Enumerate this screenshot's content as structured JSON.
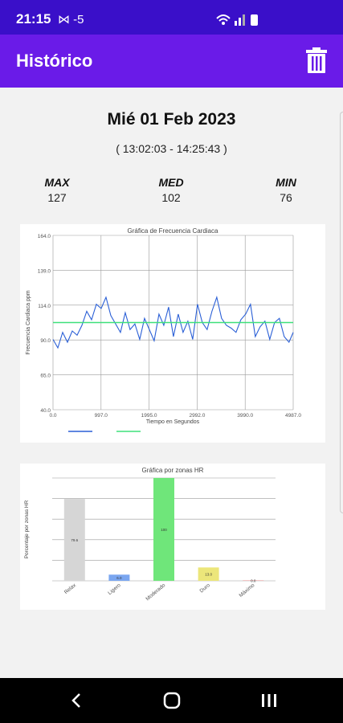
{
  "status_bar": {
    "time": "21:15",
    "indicators": "⋈ -5"
  },
  "app_bar": {
    "title": "Histórico",
    "delete_icon": "trash-icon"
  },
  "summary": {
    "date": "Mié 01 Feb 2023",
    "time_range": "( 13:02:03 - 14:25:43 )",
    "max_label": "MAX",
    "max_value": "127",
    "med_label": "MED",
    "med_value": "102",
    "min_label": "MIN",
    "min_value": "76"
  },
  "chart_data": [
    {
      "type": "line",
      "title": "Gráfica de Frecuencia Cardiaca",
      "xlabel": "Tiempo en Segundos",
      "ylabel": "Frecuencia Cardiaca ppm",
      "xlim": [
        0,
        4987
      ],
      "ylim": [
        40,
        164
      ],
      "x_ticks": [
        "0.0",
        "997.0",
        "1995.0",
        "2992.0",
        "3990.0",
        "4987.0"
      ],
      "y_ticks": [
        "164.0",
        "139.0",
        "114.0",
        "90.0",
        "65.0",
        "40.0"
      ],
      "grid": true,
      "series": [
        {
          "color": "#2a5fd6",
          "x": [
            0,
            100,
            200,
            300,
            400,
            500,
            600,
            700,
            800,
            900,
            1000,
            1100,
            1200,
            1300,
            1400,
            1500,
            1600,
            1700,
            1800,
            1900,
            2000,
            2100,
            2200,
            2300,
            2400,
            2500,
            2600,
            2700,
            2800,
            2900,
            3000,
            3100,
            3200,
            3300,
            3400,
            3500,
            3600,
            3700,
            3800,
            3900,
            4000,
            4100,
            4200,
            4300,
            4400,
            4500,
            4600,
            4700,
            4800,
            4900,
            4987
          ],
          "y": [
            90,
            84,
            95,
            88,
            96,
            93,
            100,
            110,
            104,
            115,
            112,
            120,
            107,
            101,
            95,
            109,
            97,
            101,
            90,
            105,
            97,
            89,
            108,
            100,
            113,
            92,
            108,
            95,
            103,
            90,
            115,
            102,
            97,
            110,
            120,
            105,
            100,
            98,
            95,
            104,
            108,
            115,
            92,
            99,
            103,
            90,
            102,
            105,
            92,
            88,
            95
          ]
        },
        {
          "color": "#3ee07a",
          "x": [
            0,
            4987
          ],
          "y": [
            102,
            102
          ]
        }
      ]
    },
    {
      "type": "bar",
      "title": "Gráfica por zonas HR",
      "ylabel": "Porcentaje por zonas HR",
      "categories": [
        "Relax",
        "Ligero",
        "Moderado",
        "Duro",
        "Máximo"
      ],
      "values": [
        79.6,
        6.0,
        100,
        13.0,
        0.0
      ],
      "value_labels": [
        "79.6",
        "6.0",
        "100",
        "13.0",
        "0.0"
      ],
      "colors": [
        "#d6d6d6",
        "#7aa6f0",
        "#6fe67a",
        "#ece67a",
        "#f3c6c6"
      ],
      "ylim": [
        0,
        100
      ],
      "grid": true
    }
  ],
  "nav": {
    "back": "back-icon",
    "home": "home-icon",
    "recents": "recents-icon"
  }
}
